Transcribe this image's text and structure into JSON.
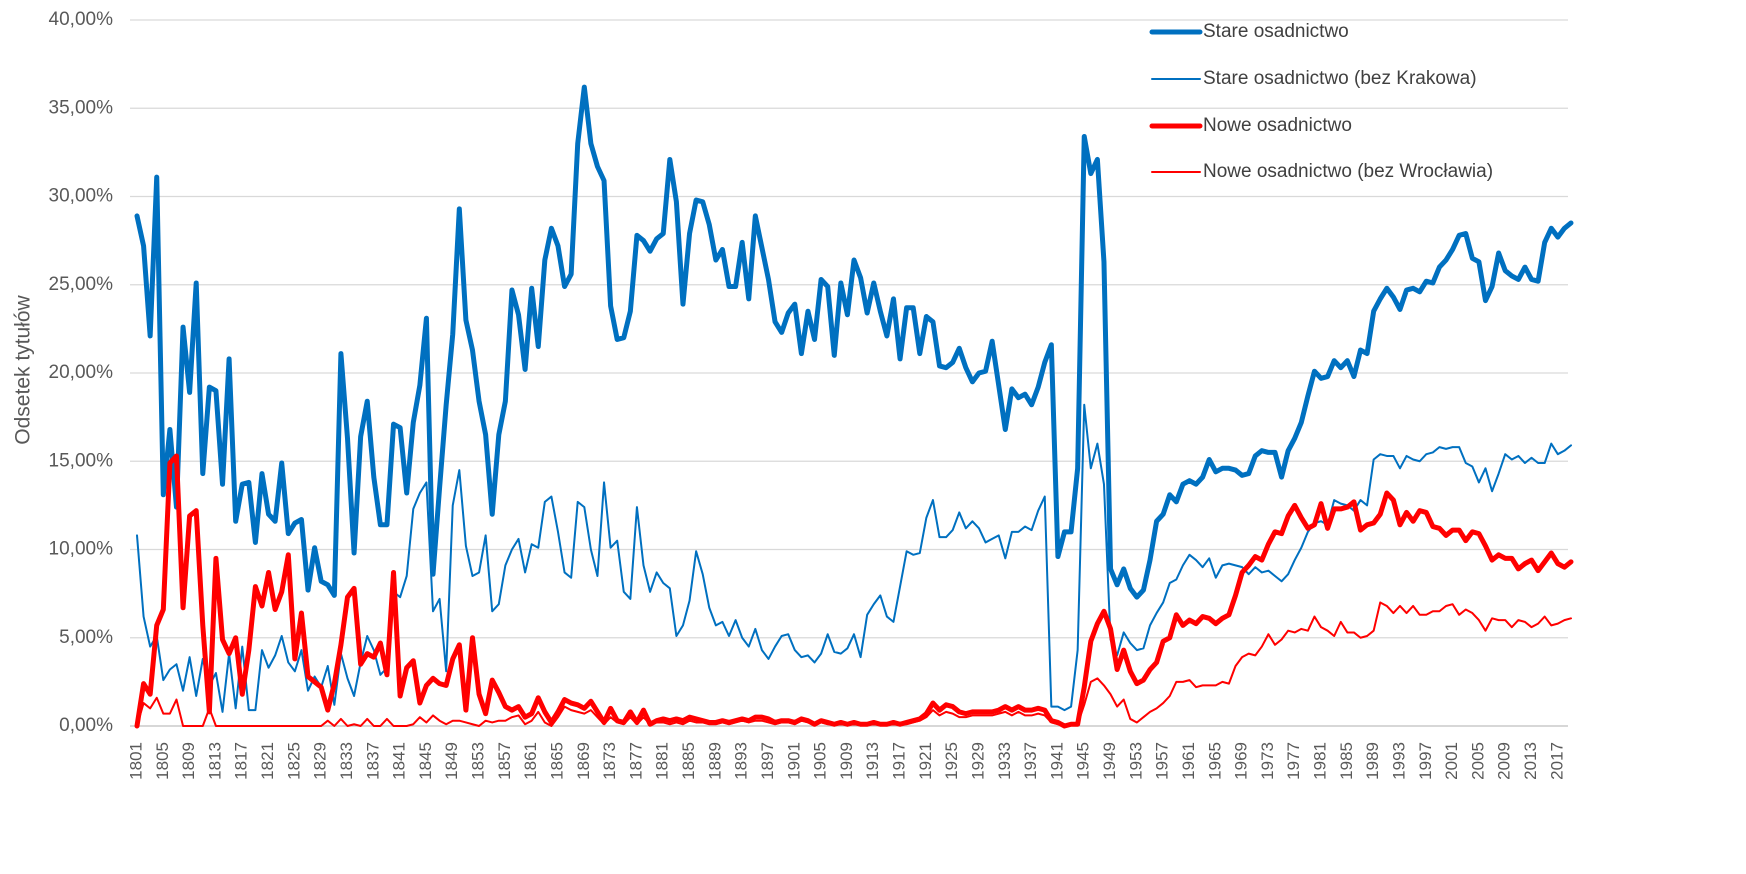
{
  "chart_data": {
    "type": "line",
    "y_label": "Odsetek  tytułów",
    "ylim": [
      0,
      40
    ],
    "yticks": [
      {
        "value": 0,
        "label": "0,00%"
      },
      {
        "value": 5,
        "label": "5,00%"
      },
      {
        "value": 10,
        "label": "10,00%"
      },
      {
        "value": 15,
        "label": "15,00%"
      },
      {
        "value": 20,
        "label": "20,00%"
      },
      {
        "value": 25,
        "label": "25,00%"
      },
      {
        "value": 30,
        "label": "30,00%"
      },
      {
        "value": 35,
        "label": "35,00%"
      },
      {
        "value": 40,
        "label": "40,00%"
      }
    ],
    "grid": true,
    "legend": "upper right",
    "categories": [
      "1801",
      null,
      null,
      null,
      "1805",
      null,
      null,
      null,
      "1809",
      null,
      null,
      null,
      "1813",
      null,
      null,
      null,
      "1817",
      null,
      null,
      null,
      "1821",
      null,
      null,
      null,
      "1825",
      null,
      null,
      null,
      "1829",
      null,
      null,
      null,
      "1833",
      null,
      null,
      null,
      "1837",
      null,
      null,
      null,
      "1841",
      null,
      null,
      null,
      "1845",
      null,
      null,
      null,
      "1849",
      null,
      null,
      null,
      "1853",
      null,
      null,
      null,
      "1857",
      null,
      null,
      null,
      "1861",
      null,
      null,
      null,
      "1865",
      null,
      null,
      null,
      "1869",
      null,
      null,
      null,
      "1873",
      null,
      null,
      null,
      "1877",
      null,
      null,
      null,
      "1881",
      null,
      null,
      null,
      "1885",
      null,
      null,
      null,
      "1889",
      null,
      null,
      null,
      "1893",
      null,
      null,
      null,
      "1897",
      null,
      null,
      null,
      "1901",
      null,
      null,
      null,
      "1905",
      null,
      null,
      null,
      "1909",
      null,
      null,
      null,
      "1913",
      null,
      null,
      null,
      "1917",
      null,
      null,
      null,
      "1921",
      null,
      null,
      null,
      "1925",
      null,
      null,
      null,
      "1929",
      null,
      null,
      null,
      "1933",
      null,
      null,
      null,
      "1937",
      null,
      null,
      null,
      "1941",
      null,
      null,
      null,
      "1945",
      null,
      null,
      null,
      "1949",
      null,
      null,
      null,
      "1953",
      null,
      null,
      null,
      "1957",
      null,
      null,
      null,
      "1961",
      null,
      null,
      null,
      "1965",
      null,
      null,
      null,
      "1969",
      null,
      null,
      null,
      "1973",
      null,
      null,
      null,
      "1977",
      null,
      null,
      null,
      "1981",
      null,
      null,
      null,
      "1985",
      null,
      null,
      null,
      "1989",
      null,
      null,
      null,
      "1993",
      null,
      null,
      null,
      "1997",
      null,
      null,
      null,
      "2001",
      null,
      null,
      null,
      "2005",
      null,
      null,
      null,
      "2009",
      null,
      null,
      null,
      "2013",
      null,
      null,
      null,
      "2017",
      null,
      null
    ],
    "series": [
      {
        "name": "Stare osadnictwo",
        "color": "#0070c0",
        "values": [
          28.9,
          27.2,
          22.1,
          31.1,
          13.1,
          16.8,
          12.4,
          22.6,
          18.9,
          25.1,
          14.3,
          19.2,
          19.0,
          13.7,
          20.8,
          11.6,
          13.7,
          13.8,
          10.4,
          14.3,
          12.0,
          11.6,
          14.9,
          10.9,
          11.5,
          11.7,
          7.7,
          10.1,
          8.2,
          8.0,
          7.4,
          21.1,
          16.3,
          9.8,
          16.4,
          18.4,
          14.1,
          11.4,
          11.4,
          17.1,
          16.9,
          13.2,
          17.2,
          19.3,
          23.1,
          8.6,
          13.5,
          18.2,
          22.2,
          29.3,
          23.0,
          21.3,
          18.4,
          16.5,
          12.0,
          16.5,
          18.4,
          24.7,
          23.3,
          20.2,
          24.8,
          21.5,
          26.4,
          28.2,
          27.2,
          24.9,
          25.6,
          33.0,
          36.2,
          33.0,
          31.7,
          30.9,
          23.8,
          21.9,
          22.0,
          23.5,
          27.8,
          27.5,
          26.9,
          27.6,
          27.9,
          32.1,
          29.7,
          23.9,
          27.9,
          29.8,
          29.7,
          28.4,
          26.4,
          27.0,
          24.9,
          24.9,
          27.4,
          24.2,
          28.9,
          27.1,
          25.3,
          22.9,
          22.3,
          23.4,
          23.9,
          21.1,
          23.5,
          21.9,
          25.3,
          24.9,
          21.0,
          25.1,
          23.3,
          26.4,
          25.4,
          23.4,
          25.1,
          23.5,
          22.1,
          24.2,
          20.8,
          23.7,
          23.7,
          21.1,
          23.2,
          22.9,
          20.4,
          20.3,
          20.6,
          21.4,
          20.3,
          19.5,
          20.0,
          20.1,
          21.8,
          19.3,
          16.8,
          19.1,
          18.6,
          18.8,
          18.2,
          19.2,
          20.6,
          21.6,
          9.6,
          11.0,
          11.0,
          14.6,
          33.4,
          31.3,
          32.1,
          26.3,
          8.9,
          8.0,
          8.9,
          7.8,
          7.3,
          7.7,
          9.4,
          11.6,
          12.0,
          13.1,
          12.7,
          13.7,
          13.9,
          13.7,
          14.1,
          15.1,
          14.4,
          14.6,
          14.6,
          14.5,
          14.2,
          14.3,
          15.3,
          15.6,
          15.5,
          15.5,
          14.1,
          15.6,
          16.3,
          17.2,
          18.7,
          20.1,
          19.7,
          19.8,
          20.7,
          20.3,
          20.7,
          19.8,
          21.3,
          21.1,
          23.5,
          24.2,
          24.8,
          24.3,
          23.6,
          24.7,
          24.8,
          24.6,
          25.2,
          25.1,
          26.0,
          26.4,
          27.0,
          27.8,
          27.9,
          26.5,
          26.3,
          24.1,
          24.9,
          26.8,
          25.8,
          25.5,
          25.3,
          26.0,
          25.3,
          25.2,
          27.4,
          28.2,
          27.7,
          28.2,
          28.5
        ]
      },
      {
        "name": "Stare osadnictwo (bez Krakowa)",
        "color": "#0070c0",
        "values": [
          10.8,
          6.2,
          4.5,
          5.1,
          2.6,
          3.2,
          3.5,
          2.0,
          3.9,
          1.7,
          3.8,
          2.3,
          3.0,
          0.8,
          4.1,
          1.0,
          4.5,
          0.9,
          0.9,
          4.3,
          3.3,
          4.0,
          5.1,
          3.6,
          3.1,
          4.3,
          2.0,
          2.8,
          2.2,
          3.4,
          1.2,
          4.1,
          2.7,
          1.7,
          3.6,
          5.1,
          4.3,
          2.9,
          3.3,
          7.6,
          7.3,
          8.5,
          12.3,
          13.2,
          13.8,
          6.5,
          7.2,
          3.1,
          12.5,
          14.5,
          10.2,
          8.5,
          8.7,
          10.8,
          6.5,
          6.9,
          9.1,
          10.0,
          10.6,
          8.7,
          10.3,
          10.1,
          12.7,
          13.0,
          11.0,
          8.7,
          8.4,
          12.7,
          12.4,
          10.0,
          8.5,
          13.8,
          10.1,
          10.5,
          7.6,
          7.2,
          12.4,
          9.1,
          7.6,
          8.7,
          8.1,
          7.8,
          5.1,
          5.7,
          7.1,
          9.9,
          8.6,
          6.7,
          5.7,
          5.9,
          5.1,
          6.0,
          5.0,
          4.5,
          5.5,
          4.3,
          3.8,
          4.5,
          5.1,
          5.2,
          4.3,
          3.9,
          4.0,
          3.6,
          4.1,
          5.2,
          4.2,
          4.1,
          4.4,
          5.2,
          3.9,
          6.3,
          6.9,
          7.4,
          6.2,
          5.9,
          7.9,
          9.9,
          9.7,
          9.8,
          11.8,
          12.8,
          10.7,
          10.7,
          11.1,
          12.1,
          11.2,
          11.6,
          11.2,
          10.4,
          10.6,
          10.8,
          9.5,
          11.0,
          11.0,
          11.3,
          11.1,
          12.2,
          13.0,
          1.1,
          1.1,
          0.9,
          1.1,
          4.3,
          18.2,
          14.6,
          16.0,
          13.7,
          4.9,
          4.0,
          5.3,
          4.7,
          4.3,
          4.4,
          5.7,
          6.4,
          7.0,
          8.1,
          8.3,
          9.1,
          9.7,
          9.4,
          9.0,
          9.5,
          8.4,
          9.1,
          9.2,
          9.1,
          9.0,
          8.6,
          9.0,
          8.7,
          8.8,
          8.5,
          8.2,
          8.6,
          9.4,
          10.1,
          11.0,
          11.5,
          11.6,
          11.4,
          12.8,
          12.6,
          12.5,
          12.2,
          12.8,
          12.5,
          15.1,
          15.4,
          15.3,
          15.3,
          14.6,
          15.3,
          15.1,
          15.0,
          15.4,
          15.5,
          15.8,
          15.7,
          15.8,
          15.8,
          14.9,
          14.7,
          13.8,
          14.6,
          13.3,
          14.3,
          15.4,
          15.1,
          15.3,
          14.9,
          15.2,
          14.9,
          14.9,
          16.0,
          15.4,
          15.6,
          15.9
        ]
      },
      {
        "name": "Nowe osadnictwo",
        "color": "#ff0000",
        "values": [
          0.0,
          2.4,
          1.8,
          5.7,
          6.6,
          14.9,
          15.3,
          6.7,
          11.9,
          12.2,
          5.7,
          0.8,
          9.5,
          4.9,
          4.1,
          5.0,
          1.8,
          4.3,
          7.9,
          6.8,
          8.7,
          6.6,
          7.6,
          9.7,
          3.8,
          6.4,
          2.8,
          2.5,
          2.2,
          0.9,
          2.4,
          4.6,
          7.3,
          7.8,
          3.5,
          4.1,
          3.9,
          4.7,
          2.9,
          8.7,
          1.7,
          3.3,
          3.7,
          1.3,
          2.3,
          2.7,
          2.4,
          2.3,
          3.8,
          4.6,
          0.9,
          5.0,
          1.8,
          0.7,
          2.6,
          1.9,
          1.1,
          0.9,
          1.1,
          0.5,
          0.7,
          1.6,
          0.8,
          0.2,
          0.8,
          1.5,
          1.3,
          1.2,
          1.0,
          1.4,
          0.8,
          0.2,
          1.0,
          0.3,
          0.2,
          0.8,
          0.2,
          0.9,
          0.1,
          0.3,
          0.4,
          0.3,
          0.4,
          0.3,
          0.5,
          0.4,
          0.3,
          0.2,
          0.2,
          0.3,
          0.2,
          0.3,
          0.4,
          0.3,
          0.5,
          0.5,
          0.4,
          0.2,
          0.3,
          0.3,
          0.2,
          0.4,
          0.3,
          0.1,
          0.3,
          0.2,
          0.1,
          0.2,
          0.1,
          0.2,
          0.1,
          0.1,
          0.2,
          0.1,
          0.1,
          0.2,
          0.1,
          0.2,
          0.3,
          0.4,
          0.7,
          1.3,
          0.9,
          1.2,
          1.1,
          0.8,
          0.7,
          0.8,
          0.8,
          0.8,
          0.8,
          0.9,
          1.1,
          0.9,
          1.1,
          0.9,
          0.9,
          1.0,
          0.9,
          0.3,
          0.2,
          0.0,
          0.1,
          0.1,
          2.2,
          4.8,
          5.8,
          6.5,
          5.5,
          3.2,
          4.3,
          3.1,
          2.4,
          2.6,
          3.2,
          3.6,
          4.8,
          5.0,
          6.3,
          5.7,
          6.0,
          5.8,
          6.2,
          6.1,
          5.8,
          6.1,
          6.3,
          7.4,
          8.7,
          9.1,
          9.6,
          9.4,
          10.3,
          11.0,
          10.9,
          11.9,
          12.5,
          11.8,
          11.2,
          11.4,
          12.6,
          11.2,
          12.3,
          12.3,
          12.4,
          12.7,
          11.1,
          11.4,
          11.5,
          12.0,
          13.2,
          12.8,
          11.4,
          12.1,
          11.6,
          12.2,
          12.1,
          11.3,
          11.2,
          10.8,
          11.1,
          11.1,
          10.5,
          11.0,
          10.9,
          10.2,
          9.4,
          9.7,
          9.5,
          9.5,
          8.9,
          9.2,
          9.4,
          8.8,
          9.3,
          9.8,
          9.2,
          9.0,
          9.3
        ]
      },
      {
        "name": "Nowe osadnictwo (bez Wrocławia)",
        "color": "#ff0000",
        "values": [
          0.0,
          1.3,
          1.0,
          1.6,
          0.7,
          0.7,
          1.5,
          0.0,
          0.0,
          0.0,
          0.0,
          1.0,
          0.0,
          0.0,
          0.0,
          0.0,
          0.0,
          0.0,
          0.0,
          0.0,
          0.0,
          0.0,
          0.0,
          0.0,
          0.0,
          0.0,
          0.0,
          0.0,
          0.0,
          0.3,
          0.0,
          0.4,
          0.0,
          0.1,
          0.0,
          0.4,
          0.0,
          0.0,
          0.4,
          0.0,
          0.0,
          0.0,
          0.1,
          0.5,
          0.2,
          0.6,
          0.3,
          0.1,
          0.3,
          0.3,
          0.2,
          0.1,
          0.0,
          0.3,
          0.2,
          0.3,
          0.3,
          0.5,
          0.6,
          0.1,
          0.3,
          0.8,
          0.2,
          0.0,
          0.5,
          1.1,
          0.9,
          0.8,
          0.7,
          0.9,
          0.5,
          0.1,
          0.5,
          0.2,
          0.1,
          0.5,
          0.1,
          0.5,
          0.1,
          0.2,
          0.2,
          0.1,
          0.2,
          0.1,
          0.3,
          0.2,
          0.2,
          0.1,
          0.1,
          0.2,
          0.1,
          0.2,
          0.3,
          0.2,
          0.3,
          0.3,
          0.2,
          0.1,
          0.2,
          0.2,
          0.1,
          0.3,
          0.2,
          0.1,
          0.2,
          0.1,
          0.1,
          0.1,
          0.1,
          0.1,
          0.1,
          0.1,
          0.1,
          0.1,
          0.1,
          0.1,
          0.1,
          0.1,
          0.2,
          0.3,
          0.5,
          0.9,
          0.6,
          0.8,
          0.7,
          0.5,
          0.5,
          0.6,
          0.6,
          0.6,
          0.6,
          0.7,
          0.8,
          0.6,
          0.8,
          0.6,
          0.6,
          0.7,
          0.6,
          0.2,
          0.1,
          0.0,
          0.1,
          0.1,
          1.2,
          2.5,
          2.7,
          2.3,
          1.8,
          1.1,
          1.5,
          0.4,
          0.2,
          0.5,
          0.8,
          1.0,
          1.3,
          1.7,
          2.5,
          2.5,
          2.6,
          2.2,
          2.3,
          2.3,
          2.3,
          2.5,
          2.4,
          3.4,
          3.9,
          4.1,
          4.0,
          4.5,
          5.2,
          4.6,
          4.9,
          5.4,
          5.3,
          5.5,
          5.4,
          6.2,
          5.6,
          5.4,
          5.1,
          5.9,
          5.3,
          5.3,
          5.0,
          5.1,
          5.4,
          7.0,
          6.8,
          6.4,
          6.8,
          6.4,
          6.8,
          6.3,
          6.3,
          6.5,
          6.5,
          6.8,
          6.9,
          6.3,
          6.6,
          6.4,
          6.0,
          5.4,
          6.1,
          6.0,
          6.0,
          5.6,
          6.0,
          5.9,
          5.6,
          5.8,
          6.2,
          5.7,
          5.8,
          6.0,
          6.1
        ]
      }
    ]
  }
}
